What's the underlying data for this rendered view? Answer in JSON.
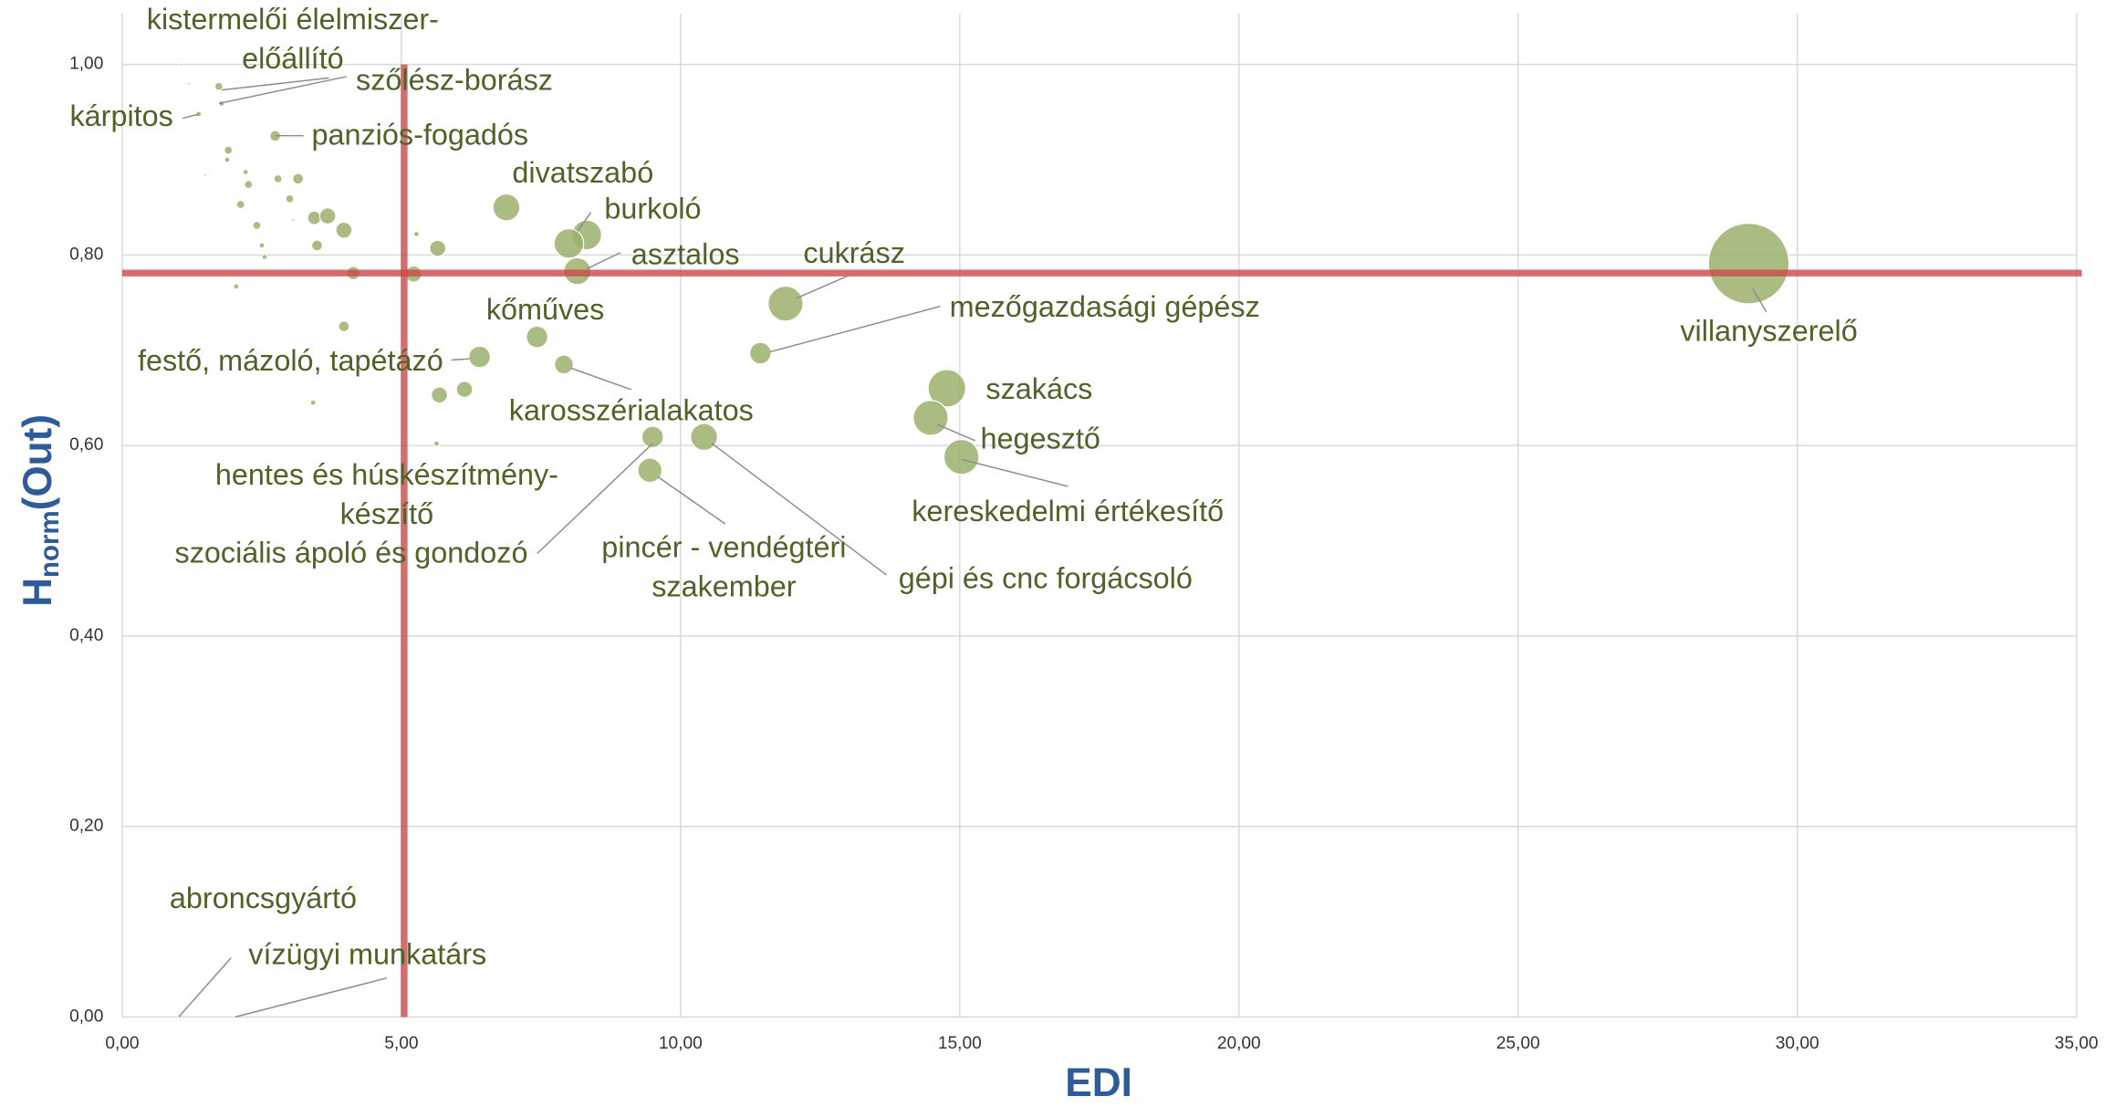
{
  "chart_data": {
    "type": "bubble",
    "x_label": "EDI",
    "y_label": {
      "main": "H",
      "sub": "norm",
      "rest": "(Out)"
    },
    "xlim": [
      0,
      35
    ],
    "ylim": [
      0,
      1.0
    ],
    "xticks": [
      {
        "value": 0,
        "label": "0,00"
      },
      {
        "value": 5,
        "label": "5,00"
      },
      {
        "value": 10,
        "label": "10,00"
      },
      {
        "value": 15,
        "label": "15,00"
      },
      {
        "value": 20,
        "label": "20,00"
      },
      {
        "value": 25,
        "label": "25,00"
      },
      {
        "value": 30,
        "label": "30,00"
      },
      {
        "value": 35,
        "label": "35,00"
      }
    ],
    "yticks": [
      {
        "value": 0,
        "label": "0,00"
      },
      {
        "value": 0.2,
        "label": "0,20"
      },
      {
        "value": 0.4,
        "label": "0,40"
      },
      {
        "value": 0.6,
        "label": "0,60"
      },
      {
        "value": 0.8,
        "label": "0,80"
      },
      {
        "value": 1.0,
        "label": "1,00"
      }
    ],
    "grid": true,
    "color": "#9bb06b",
    "ref_lines": {
      "x": 5.05,
      "y": 0.781,
      "color": "#c9484a"
    },
    "x": [
      29.13,
      11.88,
      11.43,
      14.77,
      15.03,
      14.48,
      10.42,
      9.5,
      9.45,
      7.91,
      6.4,
      5.63,
      7.43,
      8.15,
      8.32,
      6.88,
      2.74,
      1.78,
      1.37,
      1.73,
      1.01,
      2.02,
      8.0,
      1.9,
      1.88,
      2.21,
      2.26,
      1.49,
      2.79,
      3.15,
      3.0,
      2.12,
      3.44,
      3.68,
      3.06,
      2.41,
      3.97,
      3.49,
      2.5,
      2.55,
      4.14,
      5.22,
      5.65,
      5.27,
      2.04,
      3.97,
      5.68,
      6.13,
      3.42,
      1.2,
      1.05
    ],
    "y": [
      0.791,
      0.749,
      0.697,
      0.66,
      0.588,
      0.629,
      0.609,
      0.609,
      0.574,
      0.685,
      0.693,
      0.602,
      0.714,
      0.783,
      0.821,
      0.85,
      0.925,
      0.959,
      0.948,
      0.977,
      0,
      0,
      0.812,
      0.91,
      0.9,
      0.887,
      0.874,
      0.884,
      0.88,
      0.88,
      0.859,
      0.853,
      0.839,
      0.841,
      0.837,
      0.831,
      0.826,
      0.81,
      0.81,
      0.798,
      0.781,
      0.78,
      0.807,
      0.822,
      0.767,
      0.725,
      0.653,
      0.659,
      0.645,
      0.98,
      1.0
    ],
    "sizes": [
      30,
      13,
      8,
      14,
      13,
      13,
      10,
      8,
      9,
      7,
      8,
      2,
      8,
      10,
      11,
      10,
      4,
      2,
      2,
      3,
      0.5,
      0.5,
      11,
      3,
      2,
      2,
      3,
      1,
      3,
      4,
      3,
      3,
      5,
      6,
      1,
      3,
      6,
      4,
      2,
      2,
      5,
      6,
      6,
      2,
      2,
      4,
      6,
      6,
      2,
      1,
      1
    ],
    "labels": [
      "villanyszerelő",
      "cukrász",
      "mezőgazdasági gépész",
      "szakács",
      "hegesztő",
      "kereskedelmi értékesítő",
      "gépi és cnc forgácsoló",
      "szociális ápoló és gondozó",
      [
        "pincér - vendégtéri",
        "szakember"
      ],
      "karosszérialakatos",
      "festő, mázoló, tapétázó",
      [
        "hentes és húskészítmény-",
        "készítő"
      ],
      "kőműves",
      "asztalos",
      "burkoló",
      "divatszabó",
      "panziós-fogadós",
      "szőlész-borász",
      "kárpitos",
      [
        "kistermelői élelmiszer-",
        "előállító"
      ],
      "abroncsgyártó",
      "vízügyi munkatárs",
      null,
      null,
      null,
      null,
      null,
      null,
      null,
      null,
      null,
      null,
      null,
      null,
      null,
      null,
      null,
      null,
      null,
      null,
      null,
      null,
      null,
      null,
      null,
      null,
      null,
      null,
      null,
      null,
      null
    ]
  }
}
